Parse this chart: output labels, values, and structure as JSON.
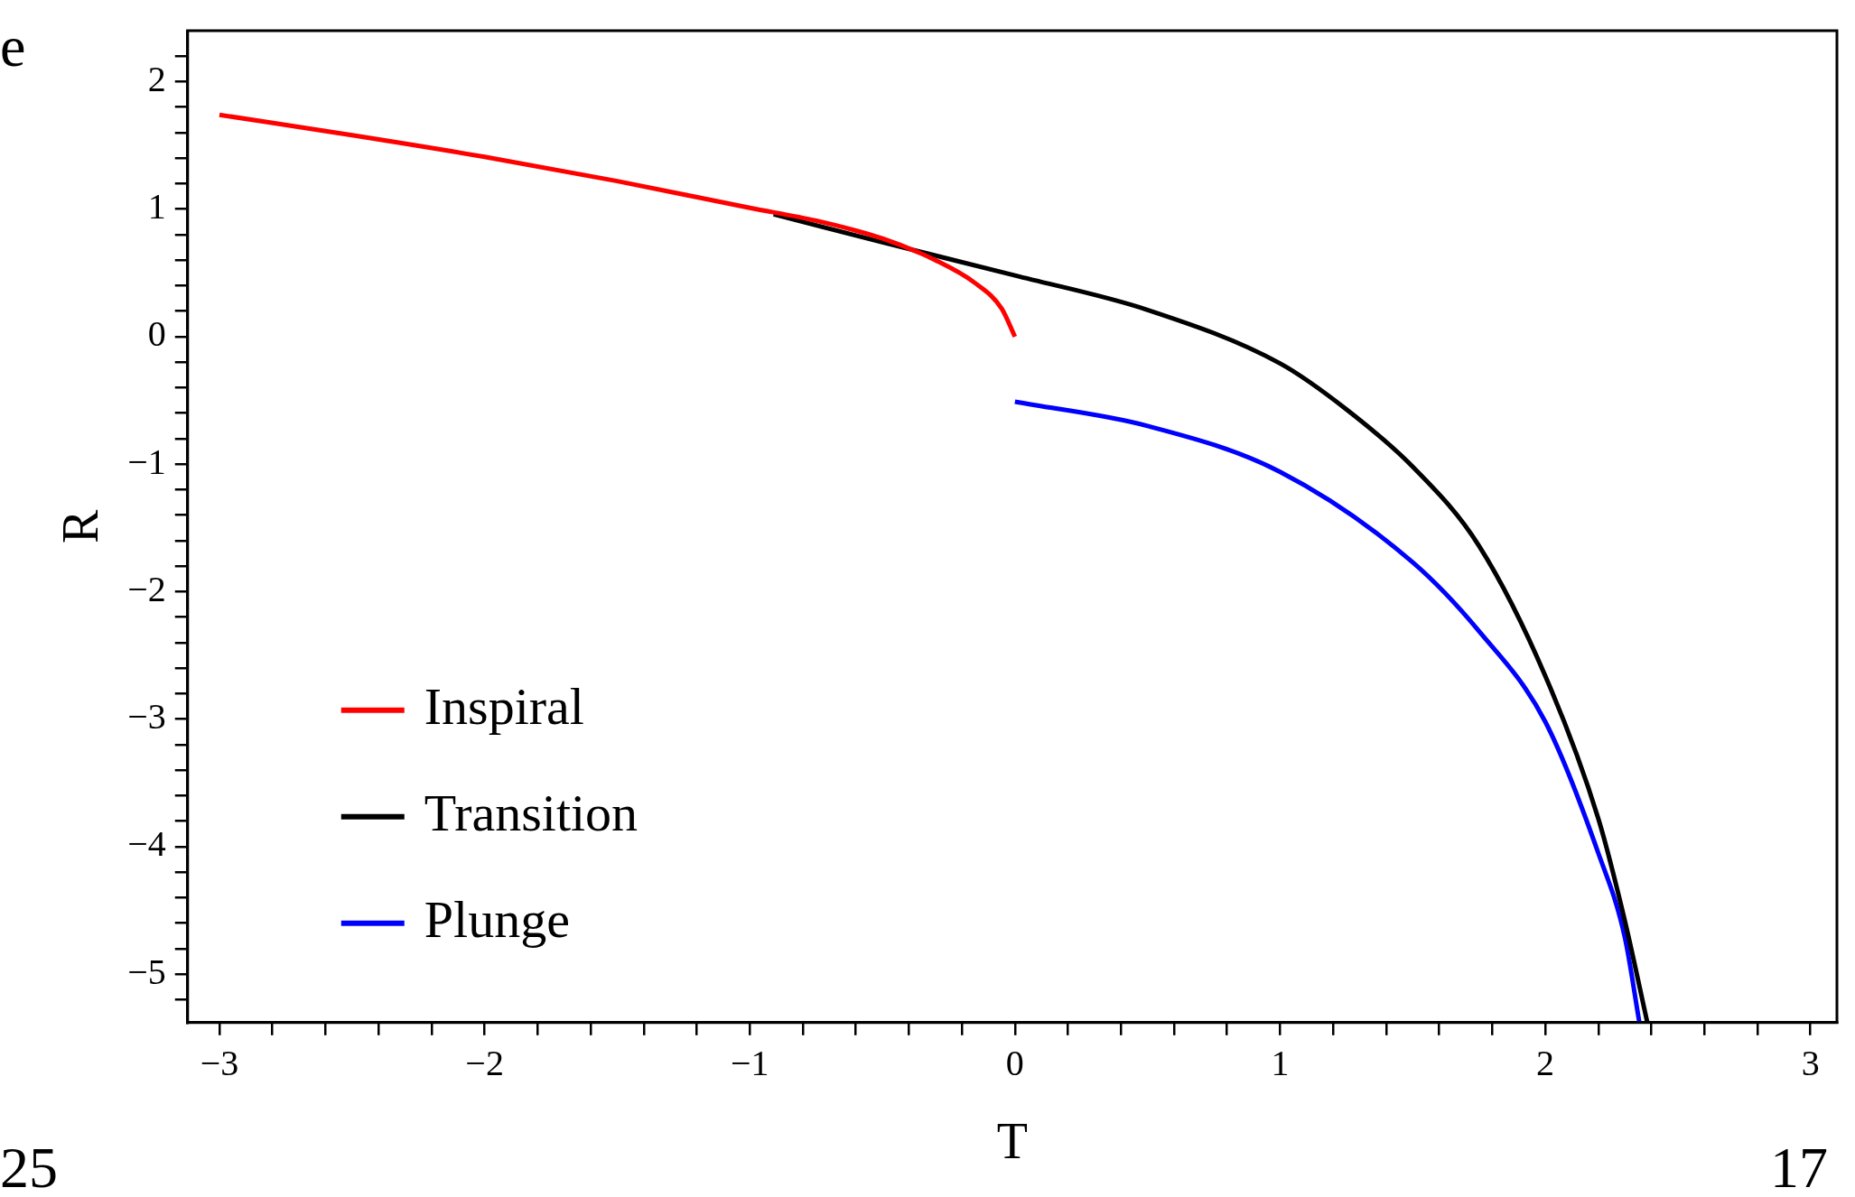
{
  "chart_data": {
    "type": "line",
    "xlabel": "T",
    "ylabel": "R",
    "legend": "bottom left",
    "grid": false,
    "marker": "none",
    "line_style": "solid",
    "xlim": [
      -3.12,
      3.1
    ],
    "ylim": [
      -5.38,
      2.4
    ],
    "xticks": [
      {
        "value": -3,
        "label": "−3"
      },
      {
        "value": -2.8,
        "label": null
      },
      {
        "value": -2.6,
        "label": null
      },
      {
        "value": -2.4,
        "label": null
      },
      {
        "value": -2.2,
        "label": null
      },
      {
        "value": -2,
        "label": "−2"
      },
      {
        "value": -1.8,
        "label": null
      },
      {
        "value": -1.6,
        "label": null
      },
      {
        "value": -1.4,
        "label": null
      },
      {
        "value": -1.2,
        "label": null
      },
      {
        "value": -1,
        "label": "−1"
      },
      {
        "value": -0.8,
        "label": null
      },
      {
        "value": -0.6,
        "label": null
      },
      {
        "value": -0.4,
        "label": null
      },
      {
        "value": -0.2,
        "label": null
      },
      0,
      {
        "value": 0.2,
        "label": null
      },
      {
        "value": 0.4,
        "label": null
      },
      {
        "value": 0.6,
        "label": null
      },
      {
        "value": 0.8,
        "label": null
      },
      1,
      {
        "value": 1.2,
        "label": null
      },
      {
        "value": 1.4,
        "label": null
      },
      {
        "value": 1.6,
        "label": null
      },
      {
        "value": 1.8,
        "label": null
      },
      2,
      {
        "value": 2.2,
        "label": null
      },
      {
        "value": 2.4,
        "label": null
      },
      {
        "value": 2.6,
        "label": null
      },
      {
        "value": 2.8,
        "label": null
      },
      3
    ],
    "yticks": [
      {
        "value": -5.2,
        "label": null
      },
      {
        "value": -5,
        "label": "−5"
      },
      {
        "value": -4.8,
        "label": null
      },
      {
        "value": -4.6,
        "label": null
      },
      {
        "value": -4.4,
        "label": null
      },
      {
        "value": -4.2,
        "label": null
      },
      {
        "value": -4,
        "label": "−4"
      },
      {
        "value": -3.8,
        "label": null
      },
      {
        "value": -3.6,
        "label": null
      },
      {
        "value": -3.4,
        "label": null
      },
      {
        "value": -3.2,
        "label": null
      },
      {
        "value": -3,
        "label": "−3"
      },
      {
        "value": -2.8,
        "label": null
      },
      {
        "value": -2.6,
        "label": null
      },
      {
        "value": -2.4,
        "label": null
      },
      {
        "value": -2.2,
        "label": null
      },
      {
        "value": -2,
        "label": "−2"
      },
      {
        "value": -1.8,
        "label": null
      },
      {
        "value": -1.6,
        "label": null
      },
      {
        "value": -1.4,
        "label": null
      },
      {
        "value": -1.2,
        "label": null
      },
      {
        "value": -1,
        "label": "−1"
      },
      {
        "value": -0.8,
        "label": null
      },
      {
        "value": -0.6,
        "label": null
      },
      {
        "value": -0.4,
        "label": null
      },
      {
        "value": -0.2,
        "label": null
      },
      0,
      {
        "value": 0.2,
        "label": null
      },
      {
        "value": 0.4,
        "label": null
      },
      {
        "value": 0.6,
        "label": null
      },
      {
        "value": 0.8,
        "label": null
      },
      1,
      {
        "value": 1.2,
        "label": null
      },
      {
        "value": 1.4,
        "label": null
      },
      {
        "value": 1.6,
        "label": null
      },
      {
        "value": 1.8,
        "label": null
      },
      2,
      {
        "value": 2.2,
        "label": null
      }
    ],
    "series": [
      {
        "name": "Inspiral",
        "color": "#ff0000",
        "x": [
          -3,
          -2.5,
          -2,
          -1.5,
          -1,
          -0.75,
          -0.5,
          -0.3,
          -0.15,
          -0.05,
          0
        ],
        "values": [
          1.74,
          1.58,
          1.41,
          1.22,
          1.01,
          0.91,
          0.77,
          0.6,
          0.42,
          0.22,
          0
        ]
      },
      {
        "name": "Transition",
        "color": "#000000",
        "x": [
          -0.91,
          -0.5,
          0,
          0.5,
          1,
          1.25,
          1.5,
          1.75,
          2,
          2.2,
          2.3,
          2.385
        ],
        "values": [
          0.96,
          0.74,
          0.48,
          0.21,
          -0.21,
          -0.57,
          -1.02,
          -1.64,
          -2.66,
          -3.78,
          -4.58,
          -5.38
        ]
      },
      {
        "name": "Plunge",
        "color": "#0000ff",
        "x": [
          0,
          0.5,
          1,
          1.5,
          1.75,
          2,
          2.2,
          2.3,
          2.355
        ],
        "values": [
          -0.51,
          -0.7,
          -1.06,
          -1.77,
          -2.31,
          -3.02,
          -4.05,
          -4.71,
          -5.38
        ]
      }
    ],
    "annotations": [
      "e",
      "25",
      "17"
    ]
  }
}
